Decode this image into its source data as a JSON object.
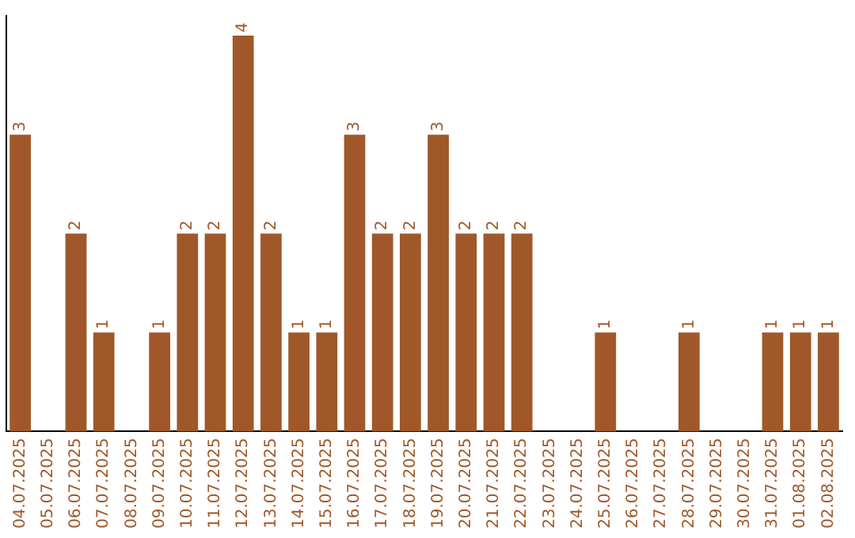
{
  "chart_data": {
    "type": "bar",
    "categories": [
      "04.07.2025",
      "05.07.2025",
      "06.07.2025",
      "07.07.2025",
      "08.07.2025",
      "09.07.2025",
      "10.07.2025",
      "11.07.2025",
      "12.07.2025",
      "13.07.2025",
      "14.07.2025",
      "15.07.2025",
      "16.07.2025",
      "17.07.2025",
      "18.07.2025",
      "19.07.2025",
      "20.07.2025",
      "21.07.2025",
      "22.07.2025",
      "23.07.2025",
      "24.07.2025",
      "25.07.2025",
      "26.07.2025",
      "27.07.2025",
      "28.07.2025",
      "29.07.2025",
      "30.07.2025",
      "31.07.2025",
      "01.08.2025",
      "02.08.2025"
    ],
    "values": [
      3,
      0,
      2,
      1,
      0,
      1,
      2,
      2,
      4,
      2,
      1,
      1,
      3,
      2,
      2,
      3,
      2,
      2,
      2,
      0,
      0,
      1,
      0,
      0,
      1,
      0,
      0,
      1,
      1,
      1
    ],
    "value_labels": [
      "3",
      null,
      "2",
      "1",
      null,
      "1",
      "2",
      "2",
      "4",
      "2",
      "1",
      "1",
      "3",
      "2",
      "2",
      "3",
      "2",
      "2",
      "2",
      null,
      null,
      "1",
      null,
      null,
      "1",
      null,
      null,
      "1",
      "1",
      "1"
    ],
    "color": "#a0582a",
    "ylim": [
      0,
      4.2
    ],
    "tick_labels": "x",
    "grid": false,
    "legend": false
  }
}
